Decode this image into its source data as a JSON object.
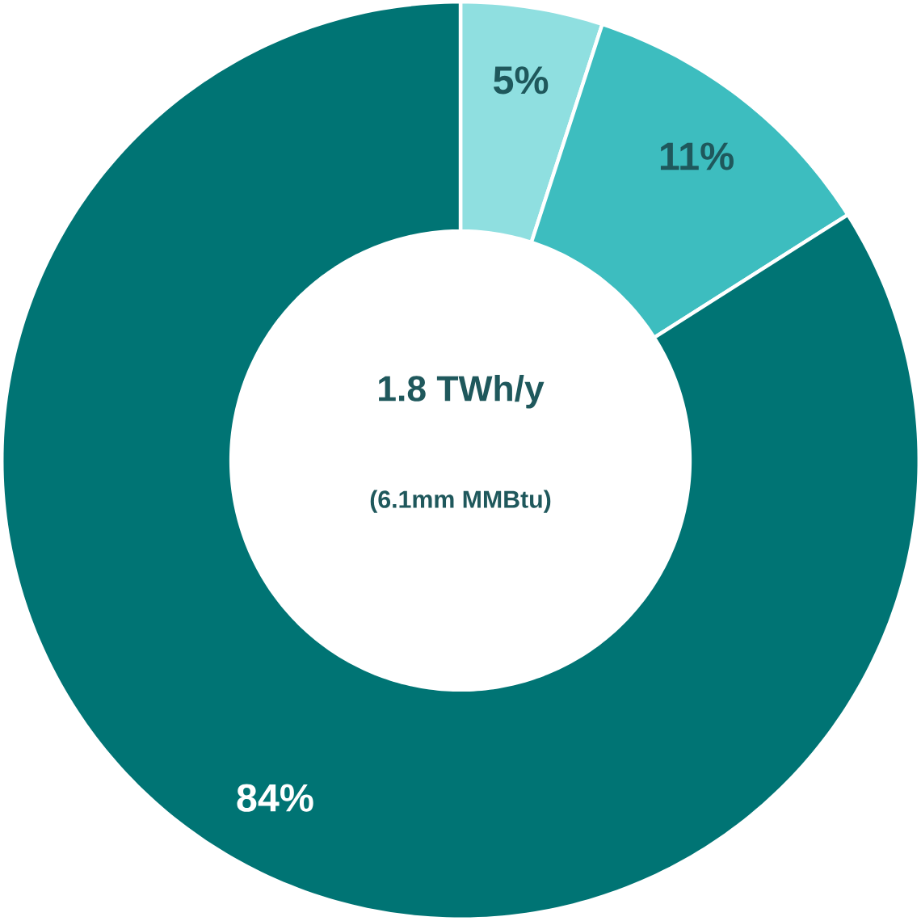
{
  "chart_data": {
    "type": "donut",
    "title": "1.8 TWh/y",
    "subtitle": "(6.1mm MMBtu)",
    "categories": [
      null,
      null,
      null
    ],
    "values": [
      5,
      11,
      84
    ],
    "colors": [
      "#8fdfe0",
      "#3dbdbf",
      "#007474"
    ],
    "value_labels": [
      "5%",
      "11%",
      "84%"
    ]
  }
}
